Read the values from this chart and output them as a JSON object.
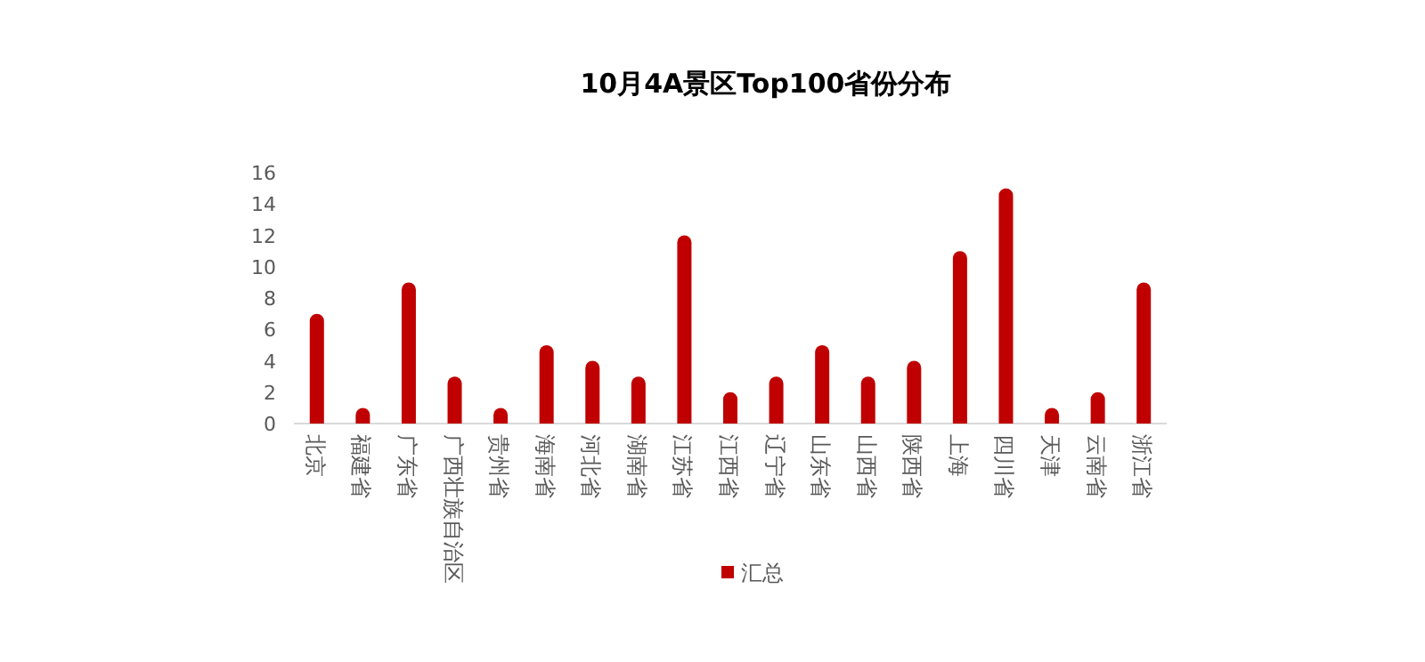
{
  "chart_data": {
    "type": "bar",
    "title": "10月4A景区Top100省份分布",
    "categories": [
      "北京",
      "福建省",
      "广东省",
      "广西壮族自治区",
      "贵州省",
      "海南省",
      "河北省",
      "湖南省",
      "江苏省",
      "江西省",
      "辽宁省",
      "山东省",
      "山西省",
      "陕西省",
      "上海",
      "四川省",
      "天津",
      "云南省",
      "浙江省"
    ],
    "series": [
      {
        "name": "汇总",
        "color": "#c00000",
        "values": [
          7,
          1,
          9,
          3,
          1,
          5,
          4,
          3,
          12,
          2,
          3,
          5,
          3,
          4,
          11,
          15,
          1,
          2,
          9
        ]
      }
    ],
    "ylim": [
      0,
      16
    ],
    "yticks": [
      0,
      2,
      4,
      6,
      8,
      10,
      12,
      14,
      16
    ],
    "grid": false,
    "legend": "bottom"
  }
}
